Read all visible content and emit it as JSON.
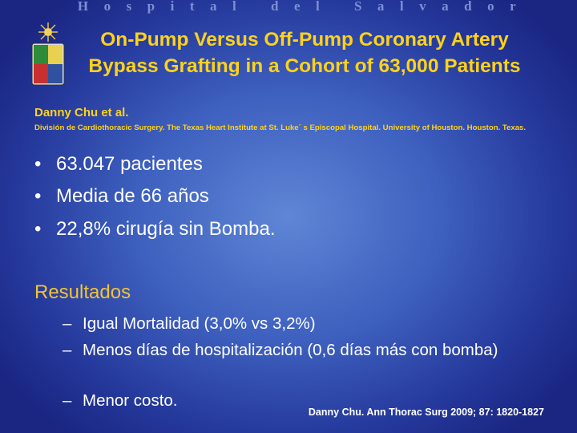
{
  "header": "Hospital del Salvador",
  "title": [
    "On-Pump Versus Off-Pump Coronary Artery",
    "Bypass Grafting in a Cohort of 63,000 Patients"
  ],
  "author": "Danny Chu et al.",
  "affiliation": "División de Cardiothoracic Surgery. The Texas Heart Institute at St. Luke´ s Episcopal Hospital.  University of Houston. Houston. Texas.",
  "bullets": [
    "63.047 pacientes",
    "Media de 66 años",
    "22,8% cirugía sin Bomba."
  ],
  "results": {
    "heading": "Resultados",
    "items": [
      "Igual Mortalidad (3,0% vs 3,2%)",
      "Menos días de hospitalización (0,6 días más con bomba)",
      "Menor costo."
    ]
  },
  "citation": "Danny Chu. Ann Thorac Surg 2009; 87: 1820-1827"
}
